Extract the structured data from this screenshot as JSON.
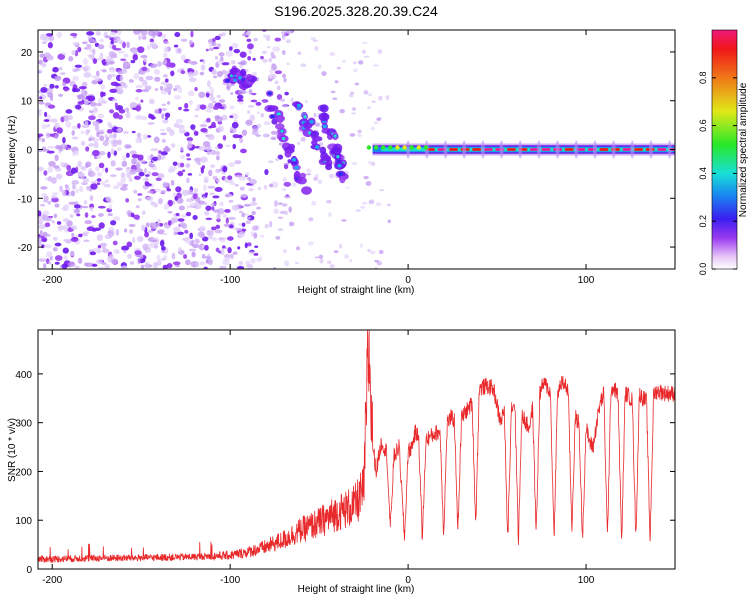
{
  "title": "S196.2025.328.20.39.C24",
  "colors": {
    "snr_line": "#e8282a",
    "frame": "#000000",
    "cmap": [
      "#ffffff",
      "#e8d4fa",
      "#b98cf5",
      "#7a1ff0",
      "#2a2af0",
      "#18a8f0",
      "#18e8d0",
      "#28e828",
      "#e8e818",
      "#f08818",
      "#f01818",
      "#f01898"
    ]
  },
  "chart_data": [
    {
      "id": "spectrogram",
      "type": "heatmap",
      "xlabel": "Height of straight line (km)",
      "ylabel": "Frequency (Hz)",
      "xlim": [
        -208,
        150
      ],
      "ylim": [
        -24.5,
        24.5
      ],
      "xticks": [
        -200,
        -100,
        0,
        100
      ],
      "xtick_labels": [
        "-200",
        "-100",
        "0",
        "100"
      ],
      "yticks": [
        -20,
        -10,
        0,
        10,
        20
      ],
      "ytick_labels": [
        "-20",
        "-10",
        "0",
        "10",
        "20"
      ],
      "colorbar": {
        "label": "Normalized spectral amplitude",
        "range": [
          0,
          1
        ],
        "ticks": [
          0.0,
          0.2,
          0.4,
          0.6,
          0.8
        ],
        "tick_labels": [
          "0.0",
          "0.2",
          "0.4",
          "0.6",
          "0.8"
        ]
      },
      "features": {
        "noise_x_range": [
          -208,
          -85
        ],
        "dispersive_tracks": [
          {
            "x": [
              -100,
              -88
            ],
            "f": [
              15,
              14
            ]
          },
          {
            "x": [
              -78,
              -58
            ],
            "f": [
              10,
              -8
            ]
          },
          {
            "x": [
              -62,
              -44
            ],
            "f": [
              9,
              -3
            ]
          },
          {
            "x": [
              -48,
              -36
            ],
            "f": [
              8,
              -6
            ]
          }
        ],
        "tone_frequency_hz": 0,
        "tone_start_km": -20,
        "tone_end_km": 150
      }
    },
    {
      "id": "snr",
      "type": "line",
      "xlabel": "Height of straight line (km)",
      "ylabel": "SNR (10 * v/v)",
      "xlim": [
        -208,
        150
      ],
      "ylim": [
        0,
        490
      ],
      "xticks": [
        -200,
        -100,
        0,
        100
      ],
      "xtick_labels": [
        "-200",
        "-100",
        "0",
        "100"
      ],
      "yticks": [
        0,
        100,
        200,
        300,
        400
      ],
      "ytick_labels": [
        "0",
        "100",
        "200",
        "300",
        "400"
      ],
      "series": [
        {
          "name": "SNR",
          "x": [
            -208,
            -180,
            -150,
            -120,
            -100,
            -90,
            -80,
            -70,
            -60,
            -50,
            -40,
            -30,
            -25,
            -22,
            -20,
            -18,
            -15,
            -12,
            -10,
            -8,
            -5,
            -2,
            0,
            2,
            4,
            6,
            8,
            10,
            12,
            14,
            16,
            18,
            20,
            22,
            24,
            26,
            28,
            30,
            32,
            34,
            36,
            38,
            40,
            44,
            48,
            52,
            54,
            56,
            58,
            60,
            62,
            64,
            66,
            68,
            70,
            72,
            74,
            76,
            78,
            80,
            82,
            84,
            86,
            88,
            90,
            92,
            94,
            96,
            98,
            100,
            102,
            104,
            106,
            108,
            110,
            112,
            114,
            116,
            118,
            120,
            122,
            124,
            126,
            128,
            130,
            132,
            134,
            136,
            138,
            140,
            145,
            150
          ],
          "y": [
            20,
            22,
            23,
            25,
            28,
            35,
            45,
            60,
            80,
            95,
            115,
            130,
            160,
            470,
            260,
            200,
            260,
            240,
            80,
            230,
            250,
            60,
            240,
            250,
            280,
            270,
            60,
            265,
            270,
            275,
            280,
            280,
            70,
            300,
            310,
            305,
            80,
            310,
            320,
            330,
            340,
            90,
            370,
            375,
            370,
            300,
            330,
            60,
            330,
            340,
            60,
            320,
            300,
            290,
            330,
            70,
            360,
            380,
            375,
            360,
            60,
            360,
            380,
            380,
            365,
            80,
            310,
            300,
            60,
            290,
            260,
            250,
            300,
            340,
            360,
            60,
            370,
            370,
            355,
            50,
            360,
            355,
            345,
            60,
            360,
            350,
            345,
            55,
            360,
            365,
            360,
            360
          ]
        }
      ]
    }
  ]
}
